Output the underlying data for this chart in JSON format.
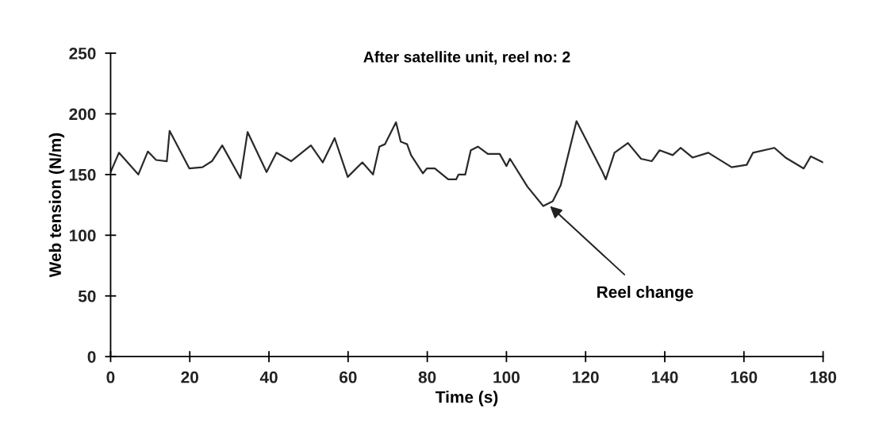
{
  "chart_data": {
    "type": "line",
    "title": "After satellite unit, reel no: 2",
    "xlabel": "Time (s)",
    "ylabel": "Web tension (N/m)",
    "x": [
      0,
      2.1,
      7.0,
      9.4,
      11.5,
      14.2,
      14.9,
      19.9,
      23.2,
      25.6,
      28.2,
      32.8,
      34.6,
      39.4,
      41.9,
      45.6,
      50.6,
      53.6,
      56.6,
      59.9,
      63.6,
      66.3,
      67.9,
      69.3,
      72.1,
      73.3,
      74.9,
      75.9,
      78.9,
      79.9,
      81.9,
      85.3,
      87.3,
      87.9,
      89.6,
      91.0,
      92.8,
      95.3,
      98.3,
      100.0,
      100.9,
      105.3,
      109.3,
      111.7,
      113.7,
      117.7,
      124.3,
      125.1,
      127.3,
      130.7,
      134.0,
      136.7,
      138.7,
      142.0,
      144.0,
      147.0,
      151.0,
      156.9,
      160.7,
      162.3,
      167.7,
      170.5,
      175.1,
      176.9,
      180
    ],
    "series": [
      {
        "color": "#2a2a2a",
        "values": [
          152,
          168,
          150,
          169,
          162,
          161,
          186,
          155,
          156,
          161,
          174,
          147,
          185,
          152,
          168,
          161,
          174,
          160,
          180,
          148,
          160,
          150,
          173,
          175,
          193,
          177,
          175,
          166,
          151,
          155,
          155,
          146,
          146,
          150,
          150,
          170,
          173,
          167,
          167,
          157,
          163,
          140,
          124,
          128,
          141,
          194,
          152,
          146,
          168,
          176,
          163,
          161,
          170,
          166,
          172,
          164,
          168,
          156,
          158,
          168,
          172,
          164,
          155,
          165,
          160
        ]
      }
    ],
    "xlim": [
      0,
      180
    ],
    "ylim": [
      0,
      250
    ],
    "xticks": [
      0,
      20,
      40,
      60,
      80,
      100,
      120,
      140,
      160,
      180
    ],
    "yticks": [
      0,
      50,
      100,
      150,
      200,
      250
    ],
    "annotations": [
      {
        "text": "Reel change",
        "x": 111,
        "y": 124
      }
    ],
    "grid": false,
    "legend": false,
    "marker": "none",
    "line_style": "solid"
  }
}
